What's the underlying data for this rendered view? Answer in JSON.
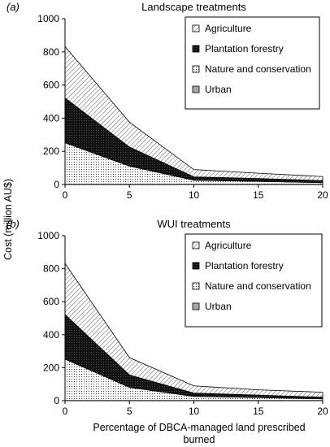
{
  "chart_data": [
    {
      "type": "area",
      "stacked": true,
      "panel_label": "a",
      "title": "Landscape treatments",
      "x": [
        0,
        5,
        10,
        15,
        20
      ],
      "xlim": [
        0,
        20
      ],
      "ylim": [
        0,
        1000
      ],
      "xticks": [
        0,
        5,
        10,
        15,
        20
      ],
      "yticks": [
        0,
        200,
        400,
        600,
        800,
        1000
      ],
      "legend_position": "top-right",
      "series": [
        {
          "name": "Urban",
          "pattern": "grey",
          "values": [
            2,
            1,
            1,
            1,
            1
          ]
        },
        {
          "name": "Nature and conservation",
          "pattern": "dots",
          "values": [
            250,
            110,
            25,
            18,
            10
          ]
        },
        {
          "name": "Plantation forestry",
          "pattern": "dark",
          "values": [
            270,
            115,
            20,
            17,
            12
          ]
        },
        {
          "name": "Agriculture",
          "pattern": "hatch",
          "values": [
            310,
            150,
            44,
            32,
            25
          ]
        }
      ]
    },
    {
      "type": "area",
      "stacked": true,
      "panel_label": "b",
      "title": "WUI treatments",
      "x": [
        0,
        5,
        10,
        15,
        20
      ],
      "xlim": [
        0,
        20
      ],
      "ylim": [
        0,
        1000
      ],
      "xticks": [
        0,
        5,
        10,
        15,
        20
      ],
      "yticks": [
        0,
        200,
        400,
        600,
        800,
        1000
      ],
      "legend_position": "top-right",
      "series": [
        {
          "name": "Urban",
          "pattern": "grey",
          "values": [
            2,
            1,
            1,
            1,
            1
          ]
        },
        {
          "name": "Nature and conservation",
          "pattern": "dots",
          "values": [
            250,
            80,
            25,
            18,
            10
          ]
        },
        {
          "name": "Plantation forestry",
          "pattern": "dark",
          "values": [
            270,
            75,
            20,
            15,
            10
          ]
        },
        {
          "name": "Agriculture",
          "pattern": "hatch",
          "values": [
            310,
            105,
            44,
            32,
            30
          ]
        }
      ]
    }
  ],
  "shared": {
    "ylabel": "Cost (million AU$)",
    "xlabel_line1": "Percentage of DBCA-managed land prescribed",
    "xlabel_line2": "burned"
  }
}
